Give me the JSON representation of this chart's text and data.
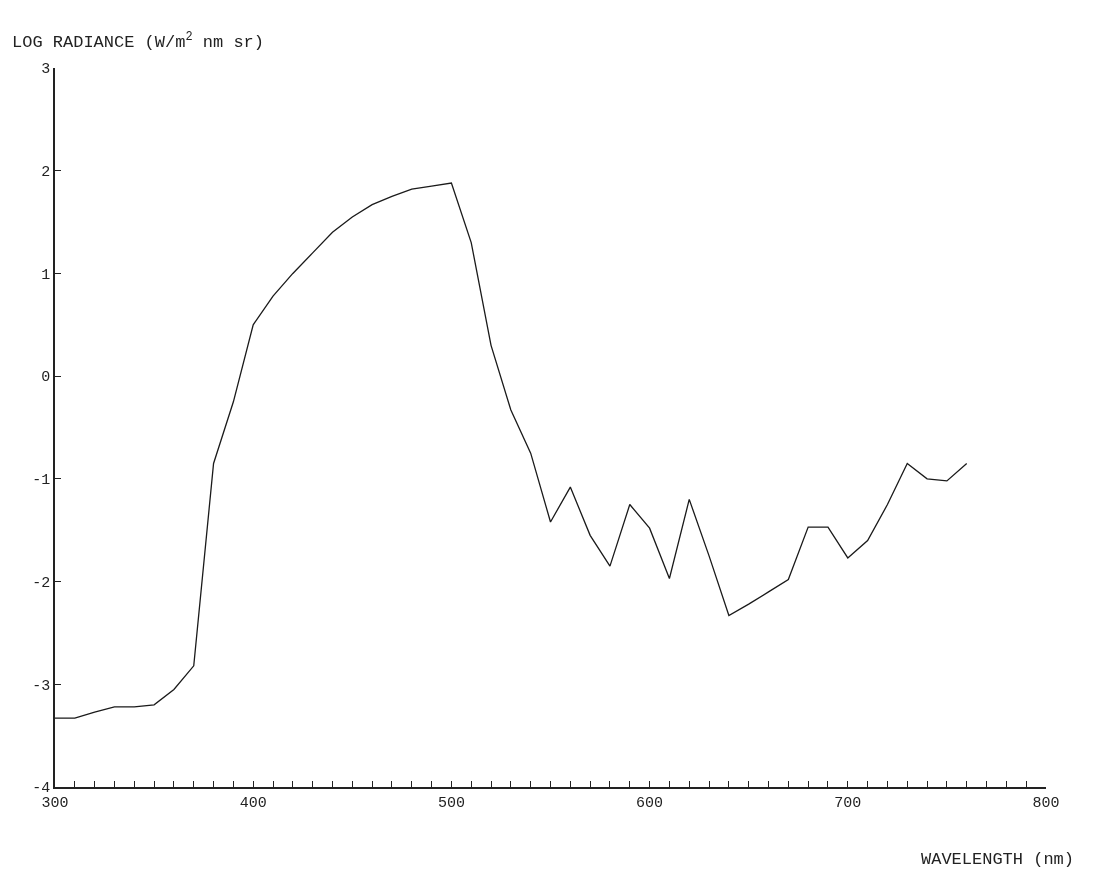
{
  "chart_data": {
    "type": "line",
    "ylabel": "LOG RADIANCE (W/m$^{2}$ nm sr)",
    "xlabel": "WAVELENGTH (nm)",
    "x": [
      300,
      310,
      320,
      330,
      340,
      350,
      360,
      370,
      380,
      390,
      400,
      410,
      420,
      430,
      440,
      450,
      460,
      470,
      480,
      490,
      500,
      510,
      520,
      530,
      540,
      550,
      560,
      570,
      580,
      590,
      600,
      610,
      620,
      630,
      640,
      650,
      660,
      670,
      680,
      690,
      700,
      710,
      720,
      730,
      740,
      750,
      760
    ],
    "values": [
      -3.33,
      -3.33,
      -3.27,
      -3.22,
      -3.22,
      -3.2,
      -3.05,
      -2.82,
      -0.85,
      -0.25,
      0.5,
      0.78,
      1.0,
      1.2,
      1.4,
      1.55,
      1.67,
      1.75,
      1.82,
      1.85,
      1.88,
      1.3,
      0.3,
      -0.33,
      -0.75,
      -1.42,
      -1.08,
      -1.55,
      -1.85,
      -1.25,
      -1.48,
      -1.97,
      -1.2,
      -1.75,
      -2.33,
      -2.22,
      -2.1,
      -1.98,
      -1.47,
      -1.47,
      -1.77,
      -1.6,
      -1.25,
      -0.85,
      -1.0,
      -1.02,
      -0.85
    ],
    "color": "#1a1a1a",
    "xlim": [
      300,
      800
    ],
    "ylim": [
      -4,
      3
    ],
    "xticks": [
      300,
      {
        "value": 310,
        "label": null
      },
      {
        "value": 320,
        "label": null
      },
      {
        "value": 330,
        "label": null
      },
      {
        "value": 340,
        "label": null
      },
      {
        "value": 350,
        "label": null
      },
      {
        "value": 360,
        "label": null
      },
      {
        "value": 370,
        "label": null
      },
      {
        "value": 380,
        "label": null
      },
      {
        "value": 390,
        "label": null
      },
      400,
      {
        "value": 410,
        "label": null
      },
      {
        "value": 420,
        "label": null
      },
      {
        "value": 430,
        "label": null
      },
      {
        "value": 440,
        "label": null
      },
      {
        "value": 450,
        "label": null
      },
      {
        "value": 460,
        "label": null
      },
      {
        "value": 470,
        "label": null
      },
      {
        "value": 480,
        "label": null
      },
      {
        "value": 490,
        "label": null
      },
      500,
      {
        "value": 510,
        "label": null
      },
      {
        "value": 520,
        "label": null
      },
      {
        "value": 530,
        "label": null
      },
      {
        "value": 540,
        "label": null
      },
      {
        "value": 550,
        "label": null
      },
      {
        "value": 560,
        "label": null
      },
      {
        "value": 570,
        "label": null
      },
      {
        "value": 580,
        "label": null
      },
      {
        "value": 590,
        "label": null
      },
      600,
      {
        "value": 610,
        "label": null
      },
      {
        "value": 620,
        "label": null
      },
      {
        "value": 630,
        "label": null
      },
      {
        "value": 640,
        "label": null
      },
      {
        "value": 650,
        "label": null
      },
      {
        "value": 660,
        "label": null
      },
      {
        "value": 670,
        "label": null
      },
      {
        "value": 680,
        "label": null
      },
      {
        "value": 690,
        "label": null
      },
      700,
      {
        "value": 710,
        "label": null
      },
      {
        "value": 720,
        "label": null
      },
      {
        "value": 730,
        "label": null
      },
      {
        "value": 740,
        "label": null
      },
      {
        "value": 750,
        "label": null
      },
      {
        "value": 760,
        "label": null
      },
      {
        "value": 770,
        "label": null
      },
      {
        "value": 780,
        "label": null
      },
      {
        "value": 790,
        "label": null
      },
      800
    ],
    "yticks": [
      -4,
      -3,
      -2,
      -1,
      0,
      1,
      2,
      3
    ],
    "marker": "none",
    "line_style": "solid"
  }
}
